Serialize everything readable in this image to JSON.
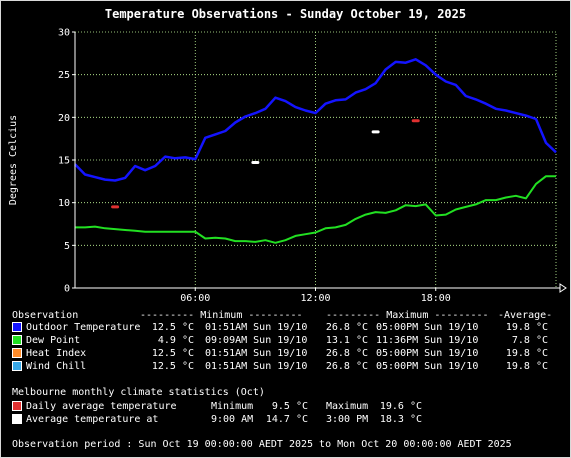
{
  "title": "Temperature Observations - Sunday October 19, 2025",
  "colors": {
    "background": "#000000",
    "grid": "#c8ff9e",
    "axis_text": "#ffffff",
    "outdoor": "#1414ff",
    "dew": "#22e022",
    "heat": "#ff8c2a",
    "wind": "#38a8e8",
    "daily_avg": "#e03030",
    "avg_at": "#ffffff"
  },
  "chart_data": {
    "type": "line",
    "ylabel": "Degrees Celcius",
    "ylim": [
      0,
      30
    ],
    "xlim": [
      0,
      24
    ],
    "y_ticks": [
      "0",
      "5",
      "10",
      "15",
      "20",
      "25",
      "30"
    ],
    "x_ticks": [
      "06:00",
      "12:00",
      "18:00"
    ],
    "x_tick_hours": [
      6,
      12,
      18
    ],
    "grid": true,
    "series": [
      {
        "name": "Outdoor Temperature",
        "color": "#1414ff",
        "x": [
          0,
          0.5,
          1,
          1.5,
          2,
          2.5,
          3,
          3.5,
          4,
          4.5,
          5,
          5.5,
          6,
          6.5,
          7,
          7.5,
          8,
          8.5,
          9,
          9.5,
          10,
          10.5,
          11,
          11.5,
          12,
          12.5,
          13,
          13.5,
          14,
          14.5,
          15,
          15.5,
          16,
          16.5,
          17,
          17.5,
          18,
          18.5,
          19,
          19.5,
          20,
          20.5,
          21,
          21.5,
          22,
          22.5,
          23,
          23.5,
          24
        ],
        "y": [
          14.5,
          13.3,
          13.0,
          12.7,
          12.6,
          12.9,
          14.3,
          13.8,
          14.3,
          15.4,
          15.2,
          15.3,
          15.1,
          17.6,
          18.0,
          18.4,
          19.4,
          20.1,
          20.5,
          21.0,
          22.3,
          21.9,
          21.2,
          20.8,
          20.5,
          21.6,
          22.0,
          22.1,
          22.9,
          23.3,
          24.0,
          25.6,
          26.5,
          26.4,
          26.8,
          26.1,
          25.0,
          24.2,
          23.8,
          22.5,
          22.1,
          21.6,
          21.0,
          20.8,
          20.5,
          20.2,
          19.8,
          17.0,
          15.9
        ]
      },
      {
        "name": "Dew Point",
        "color": "#22e022",
        "x": [
          0,
          0.5,
          1,
          1.5,
          2,
          2.5,
          3,
          3.5,
          4,
          4.5,
          5,
          5.5,
          6,
          6.5,
          7,
          7.5,
          8,
          8.5,
          9,
          9.5,
          10,
          10.5,
          11,
          11.5,
          12,
          12.5,
          13,
          13.5,
          14,
          14.5,
          15,
          15.5,
          16,
          16.5,
          17,
          17.5,
          18,
          18.5,
          19,
          19.5,
          20,
          20.5,
          21,
          21.5,
          22,
          22.5,
          23,
          23.5,
          24
        ],
        "y": [
          7.1,
          7.1,
          7.2,
          7.0,
          6.9,
          6.8,
          6.7,
          6.6,
          6.6,
          6.6,
          6.6,
          6.6,
          6.6,
          5.8,
          5.9,
          5.8,
          5.5,
          5.5,
          5.4,
          5.6,
          5.3,
          5.6,
          6.1,
          6.3,
          6.5,
          7.0,
          7.1,
          7.4,
          8.1,
          8.6,
          8.9,
          8.8,
          9.1,
          9.7,
          9.6,
          9.8,
          8.5,
          8.6,
          9.2,
          9.5,
          9.8,
          10.3,
          10.3,
          10.6,
          10.8,
          10.5,
          12.2,
          13.1,
          13.1
        ]
      }
    ],
    "markers": [
      {
        "name": "Daily average temperature",
        "color": "#e03030",
        "points": [
          [
            2,
            9.5
          ],
          [
            17,
            19.6
          ]
        ]
      },
      {
        "name": "Average temperature at",
        "color": "#ffffff",
        "points": [
          [
            9,
            14.7
          ],
          [
            15,
            18.3
          ]
        ]
      }
    ]
  },
  "legend": {
    "header": {
      "observation": "Observation",
      "minimum": "--------- Minimum ---------",
      "maximum": "--------- Maximum ---------",
      "average": "-Average-"
    },
    "rows": [
      {
        "label": "Outdoor Temperature",
        "color": "#1414ff",
        "min_value": "12.5 °C",
        "min_time": "01:51AM Sun 19/10",
        "max_value": "26.8 °C",
        "max_time": "05:00PM Sun 19/10",
        "avg": "19.8 °C"
      },
      {
        "label": "Dew Point",
        "color": "#22e022",
        "min_value": "4.9 °C",
        "min_time": "09:09AM Sun 19/10",
        "max_value": "13.1 °C",
        "max_time": "11:36PM Sun 19/10",
        "avg": "7.8 °C"
      },
      {
        "label": "Heat Index",
        "color": "#ff8c2a",
        "min_value": "12.5 °C",
        "min_time": "01:51AM Sun 19/10",
        "max_value": "26.8 °C",
        "max_time": "05:00PM Sun 19/10",
        "avg": "19.8 °C"
      },
      {
        "label": "Wind Chill",
        "color": "#38a8e8",
        "min_value": "12.5 °C",
        "min_time": "01:51AM Sun 19/10",
        "max_value": "26.8 °C",
        "max_time": "05:00PM Sun 19/10",
        "avg": "19.8 °C"
      }
    ]
  },
  "climate": {
    "header": "Melbourne monthly climate statistics (Oct)",
    "daily_avg": {
      "label": "Daily average temperature",
      "min_label": "Minimum",
      "min_value": "9.5 °C",
      "max_label": "Maximum",
      "max_value": "19.6 °C",
      "color": "#e03030"
    },
    "avg_at": {
      "label": "Average temperature at",
      "time1": "9:00 AM",
      "value1": "14.7 °C",
      "time2": "3:00 PM",
      "value2": "18.3 °C",
      "color": "#ffffff"
    }
  },
  "footer": "Observation period : Sun Oct 19 00:00:00 AEDT 2025 to Mon Oct 20 00:00:00 AEDT 2025"
}
